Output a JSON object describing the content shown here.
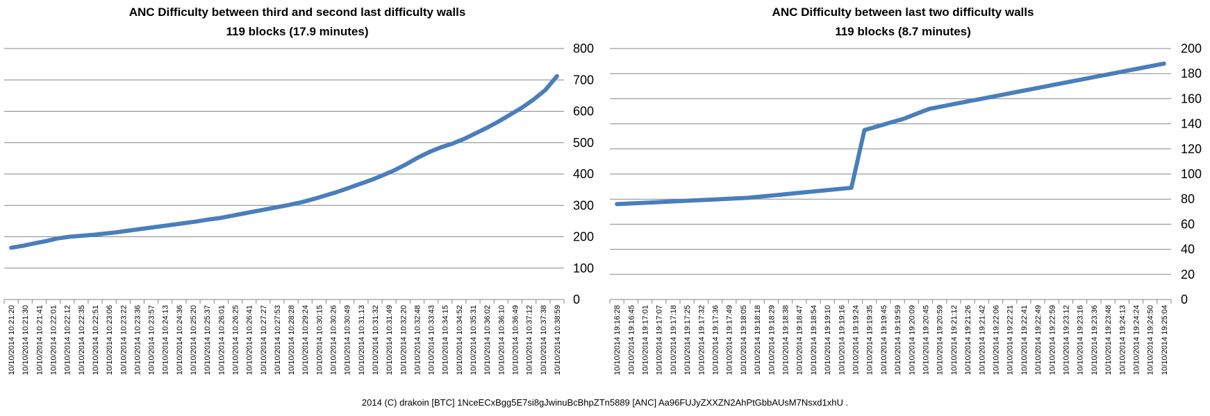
{
  "footer": "2014 (C) drakoin  [BTC] 1NceECxBgg5E7si8gJwinuBcBhpZTn5889  [ANC] Aa96FUJyZXXZN2AhPtGbbAUsM7Nsxd1xhU .",
  "chart_data": [
    {
      "type": "line",
      "title": "ANC Difficulty between third and second last difficulty walls",
      "subtitle": "119 blocks (17.9 minutes)",
      "xlabel": "",
      "ylabel": "",
      "ylim": [
        0,
        800
      ],
      "yticks": [
        0,
        100,
        200,
        300,
        400,
        500,
        600,
        700,
        800
      ],
      "grid": true,
      "line_color": "#4a7ebb",
      "date_label": "10/10/2014",
      "xtick_labels": [
        "10:21:20",
        "10:21:30",
        "10:21:41",
        "10:22:01",
        "10:22:12",
        "10:22:35",
        "10:22:51",
        "10:23:06",
        "10:23:22",
        "10:23:36",
        "10:23:57",
        "10:24:13",
        "10:24:36",
        "10:25:20",
        "10:25:37",
        "10:26:01",
        "10:26:25",
        "10:26:41",
        "10:27:27",
        "10:27:53",
        "10:28:28",
        "10:29:24",
        "10:30:15",
        "10:30:26",
        "10:30:49",
        "10:31:13",
        "10:31:32",
        "10:31:49",
        "10:32:20",
        "10:32:48",
        "10:33:43",
        "10:34:15",
        "10:34:52",
        "10:35:31",
        "10:36:02",
        "10:36:10",
        "10:36:49",
        "10:37:12",
        "10:37:38",
        "10:38:59"
      ],
      "series": [
        {
          "name": "ANC Difficulty",
          "values": [
            165,
            171,
            179,
            186,
            195,
            200,
            203,
            206,
            210,
            214,
            219,
            224,
            229,
            234,
            239,
            244,
            249,
            255,
            260,
            267,
            274,
            281,
            288,
            295,
            302,
            310,
            320,
            331,
            342,
            355,
            368,
            381,
            396,
            412,
            431,
            452,
            470,
            485,
            497,
            512,
            530,
            548,
            568,
            590,
            612,
            638,
            668,
            712
          ]
        }
      ]
    },
    {
      "type": "line",
      "title": "ANC Difficulty between last two difficulty walls",
      "subtitle": "119 blocks (8.7 minutes)",
      "xlabel": "",
      "ylabel": "",
      "ylim": [
        0,
        200
      ],
      "yticks": [
        0,
        20,
        40,
        60,
        80,
        100,
        120,
        140,
        160,
        180,
        200
      ],
      "grid": true,
      "line_color": "#4a7ebb",
      "date_label": "10/10/2014",
      "xtick_labels": [
        "19:16:28",
        "19:16:45",
        "19:17:01",
        "19:17:07",
        "19:17:18",
        "19:17:25",
        "19:17:32",
        "19:17:36",
        "19:17:49",
        "19:18:05",
        "19:18:18",
        "19:18:29",
        "19:18:38",
        "19:18:47",
        "19:18:54",
        "19:19:10",
        "19:19:16",
        "19:19:24",
        "19:19:35",
        "19:19:45",
        "19:19:59",
        "19:20:09",
        "19:20:45",
        "19:20:59",
        "19:21:12",
        "19:21:26",
        "19:21:42",
        "19:22:06",
        "19:22:21",
        "19:22:41",
        "19:22:49",
        "19:22:59",
        "19:23:12",
        "19:23:16",
        "19:23:36",
        "19:23:48",
        "19:24:13",
        "19:24:24",
        "19:24:50",
        "19:25:04"
      ],
      "series": [
        {
          "name": "ANC Difficulty",
          "values": [
            76,
            76.5,
            77,
            77.5,
            78,
            78.5,
            79,
            79.5,
            80,
            80.5,
            81,
            82,
            83,
            84,
            85,
            86,
            87,
            88,
            89,
            135,
            138,
            141,
            144,
            148,
            152,
            154,
            156,
            158,
            160,
            162,
            164,
            166,
            168,
            170,
            172,
            174,
            176,
            178,
            180,
            182,
            184,
            186,
            188
          ]
        }
      ]
    }
  ]
}
